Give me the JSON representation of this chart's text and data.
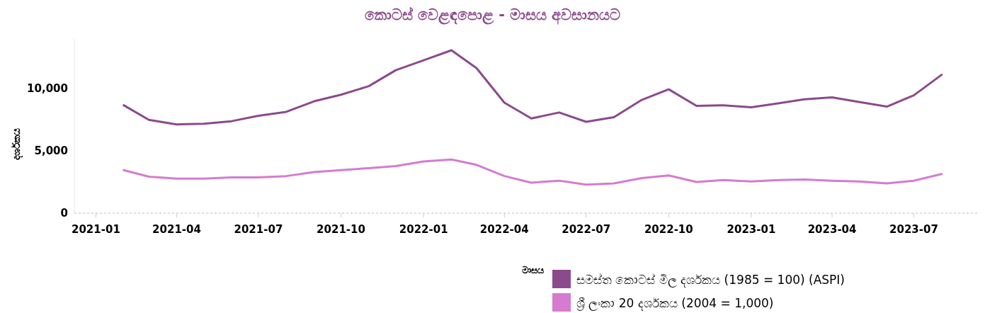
{
  "chart_data": {
    "type": "line",
    "title": "කොටස් වෙළඳපොළ - මාසය අවසානයට",
    "xlabel": "මාසය",
    "ylabel": "දර්ශකය",
    "x": [
      "2021-02",
      "2021-03",
      "2021-04",
      "2021-05",
      "2021-06",
      "2021-07",
      "2021-08",
      "2021-09",
      "2021-10",
      "2021-11",
      "2021-12",
      "2022-01",
      "2022-02",
      "2022-03",
      "2022-04",
      "2022-05",
      "2022-06",
      "2022-07",
      "2022-08",
      "2022-09",
      "2022-10",
      "2022-11",
      "2022-12",
      "2023-01",
      "2023-02",
      "2023-03",
      "2023-04",
      "2023-05",
      "2023-06",
      "2023-07",
      "2023-08"
    ],
    "series": [
      {
        "name": "සමස්ත කොටස් මිල දර්ශකය (1985 = 100)  (ASPI)",
        "color": "#8b4a8c",
        "values": [
          8670,
          7500,
          7130,
          7180,
          7390,
          7820,
          8140,
          8990,
          9520,
          10210,
          11490,
          12290,
          13090,
          11650,
          8880,
          7610,
          8090,
          7340,
          7710,
          9100,
          9950,
          8620,
          8670,
          8510,
          8830,
          9150,
          9310,
          8940,
          8560,
          9470,
          11120
        ]
      },
      {
        "name": "ශ්‍රී ලංකා 20 දර්ශකය (2004 = 1,000)",
        "color": "#d57bd0",
        "values": [
          3460,
          2930,
          2770,
          2770,
          2870,
          2870,
          2980,
          3300,
          3460,
          3620,
          3780,
          4150,
          4310,
          3880,
          2980,
          2450,
          2610,
          2290,
          2390,
          2820,
          3030,
          2500,
          2660,
          2550,
          2660,
          2710,
          2610,
          2550,
          2390,
          2610,
          3140
        ]
      }
    ],
    "xlim": [
      "2020-12-08",
      "2023-09-12"
    ],
    "xticks": [
      {
        "value": "2021-01",
        "label": "2021-01"
      },
      {
        "value": "2021-04",
        "label": "2021-04"
      },
      {
        "value": "2021-07",
        "label": "2021-07"
      },
      {
        "value": "2021-10",
        "label": "2021-10"
      },
      {
        "value": "2022-01",
        "label": "2022-01"
      },
      {
        "value": "2022-04",
        "label": "2022-04"
      },
      {
        "value": "2022-07",
        "label": "2022-07"
      },
      {
        "value": "2022-10",
        "label": "2022-10"
      },
      {
        "value": "2023-01",
        "label": "2023-01"
      },
      {
        "value": "2023-04",
        "label": "2023-04"
      },
      {
        "value": "2023-07",
        "label": "2023-07"
      }
    ],
    "ylim": [
      0,
      14000
    ],
    "yticks": [
      {
        "value": 0,
        "label": "0"
      },
      {
        "value": 5000,
        "label": "5,000"
      },
      {
        "value": 10000,
        "label": "10,000"
      }
    ],
    "grid": false,
    "legend": "bottom right",
    "marker": "none",
    "line_style": "solid"
  }
}
